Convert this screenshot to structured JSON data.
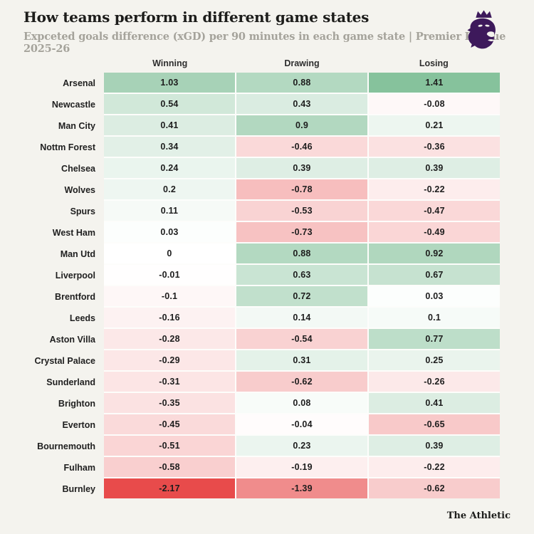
{
  "header": {
    "title": "How teams perform in different game states",
    "subtitle": "Expceted goals difference (xGD) per 90 minutes in each game state | Premier League 2025-26",
    "logo_name": "premier-league-lion",
    "logo_color": "#3d195b"
  },
  "footer": {
    "brand": "The Athletic"
  },
  "chart_data": {
    "type": "heatmap",
    "columns": [
      "Winning",
      "Drawing",
      "Losing"
    ],
    "rows": [
      {
        "team": "Arsenal",
        "values": [
          1.03,
          0.88,
          1.41
        ],
        "display": [
          "1.03",
          "0.88",
          "1.41"
        ]
      },
      {
        "team": "Newcastle",
        "values": [
          0.54,
          0.43,
          -0.08
        ],
        "display": [
          "0.54",
          "0.43",
          "-0.08"
        ]
      },
      {
        "team": "Man City",
        "values": [
          0.41,
          0.9,
          0.21
        ],
        "display": [
          "0.41",
          "0.9",
          "0.21"
        ]
      },
      {
        "team": "Nottm Forest",
        "values": [
          0.34,
          -0.46,
          -0.36
        ],
        "display": [
          "0.34",
          "-0.46",
          "-0.36"
        ]
      },
      {
        "team": "Chelsea",
        "values": [
          0.24,
          0.39,
          0.39
        ],
        "display": [
          "0.24",
          "0.39",
          "0.39"
        ]
      },
      {
        "team": "Wolves",
        "values": [
          0.2,
          -0.78,
          -0.22
        ],
        "display": [
          "0.2",
          "-0.78",
          "-0.22"
        ]
      },
      {
        "team": "Spurs",
        "values": [
          0.11,
          -0.53,
          -0.47
        ],
        "display": [
          "0.11",
          "-0.53",
          "-0.47"
        ]
      },
      {
        "team": "West Ham",
        "values": [
          0.03,
          -0.73,
          -0.49
        ],
        "display": [
          "0.03",
          "-0.73",
          "-0.49"
        ]
      },
      {
        "team": "Man Utd",
        "values": [
          0,
          0.88,
          0.92
        ],
        "display": [
          "0",
          "0.88",
          "0.92"
        ]
      },
      {
        "team": "Liverpool",
        "values": [
          -0.01,
          0.63,
          0.67
        ],
        "display": [
          "-0.01",
          "0.63",
          "0.67"
        ]
      },
      {
        "team": "Brentford",
        "values": [
          -0.1,
          0.72,
          0.03
        ],
        "display": [
          "-0.1",
          "0.72",
          "0.03"
        ]
      },
      {
        "team": "Leeds",
        "values": [
          -0.16,
          0.14,
          0.1
        ],
        "display": [
          "-0.16",
          "0.14",
          "0.1"
        ]
      },
      {
        "team": "Aston Villa",
        "values": [
          -0.28,
          -0.54,
          0.77
        ],
        "display": [
          "-0.28",
          "-0.54",
          "0.77"
        ]
      },
      {
        "team": "Crystal Palace",
        "values": [
          -0.29,
          0.31,
          0.25
        ],
        "display": [
          "-0.29",
          "0.31",
          "0.25"
        ]
      },
      {
        "team": "Sunderland",
        "values": [
          -0.31,
          -0.62,
          -0.26
        ],
        "display": [
          "-0.31",
          "-0.62",
          "-0.26"
        ]
      },
      {
        "team": "Brighton",
        "values": [
          -0.35,
          0.08,
          0.41
        ],
        "display": [
          "-0.35",
          "0.08",
          "0.41"
        ]
      },
      {
        "team": "Everton",
        "values": [
          -0.45,
          -0.04,
          -0.65
        ],
        "display": [
          "-0.45",
          "-0.04",
          "-0.65"
        ]
      },
      {
        "team": "Bournemouth",
        "values": [
          -0.51,
          0.23,
          0.39
        ],
        "display": [
          "-0.51",
          "0.23",
          "0.39"
        ]
      },
      {
        "team": "Fulham",
        "values": [
          -0.58,
          -0.19,
          -0.22
        ],
        "display": [
          "-0.58",
          "-0.19",
          "-0.22"
        ]
      },
      {
        "team": "Burnley",
        "values": [
          -2.17,
          -1.39,
          -0.62
        ],
        "display": [
          "-2.17",
          "-1.39",
          "-0.62"
        ]
      }
    ],
    "color_scale": {
      "positive_anchor": "#86c29c",
      "negative_anchor": "#e84b4b",
      "neutral": "#ffffff",
      "max": 1.41,
      "min": -2.17
    },
    "grid": "white 2px gaps between cells",
    "legend_position": "none"
  }
}
